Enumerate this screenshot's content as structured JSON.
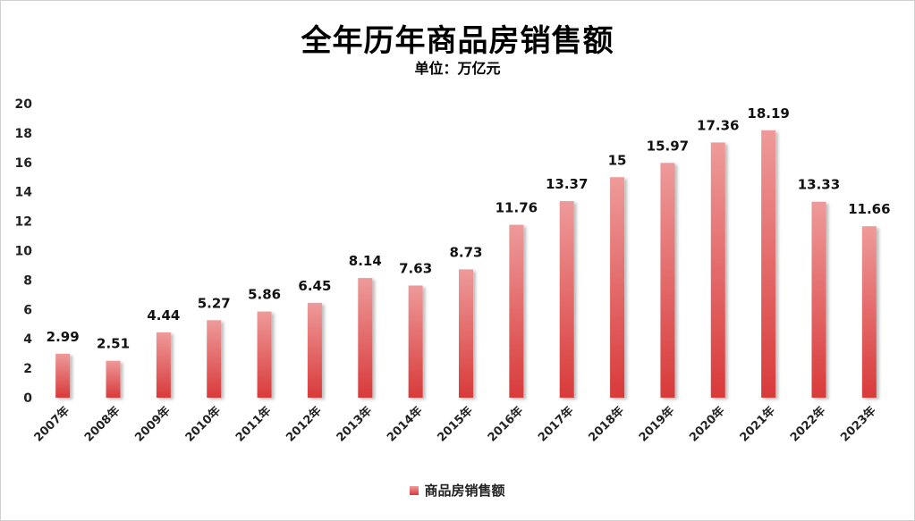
{
  "chart_data": {
    "type": "bar",
    "title": "全年历年商品房销售额",
    "subtitle": "单位：万亿元",
    "categories": [
      "2007年",
      "2008年",
      "2009年",
      "2010年",
      "2011年",
      "2012年",
      "2013年",
      "2014年",
      "2015年",
      "2016年",
      "2017年",
      "2018年",
      "2019年",
      "2020年",
      "2021年",
      "2022年",
      "2023年"
    ],
    "series": [
      {
        "name": "商品房销售额",
        "values": [
          2.99,
          2.51,
          4.44,
          5.27,
          5.86,
          6.45,
          8.14,
          7.63,
          8.73,
          11.76,
          13.37,
          15,
          15.97,
          17.36,
          18.19,
          13.33,
          11.66
        ],
        "labels": [
          "2.99",
          "2.51",
          "4.44",
          "5.27",
          "5.86",
          "6.45",
          "8.14",
          "7.63",
          "8.73",
          "11.76",
          "13.37",
          "15",
          "15.97",
          "17.36",
          "18.19",
          "13.33",
          "11.66"
        ]
      }
    ],
    "yticks": [
      "0",
      "2",
      "4",
      "6",
      "8",
      "10",
      "12",
      "14",
      "16",
      "18",
      "20"
    ],
    "ylim": [
      0,
      20
    ],
    "grid": false,
    "legend_position": "bottom",
    "colors": {
      "bar_top": "#ee9a9a",
      "bar_bottom": "#d93a3a"
    }
  }
}
